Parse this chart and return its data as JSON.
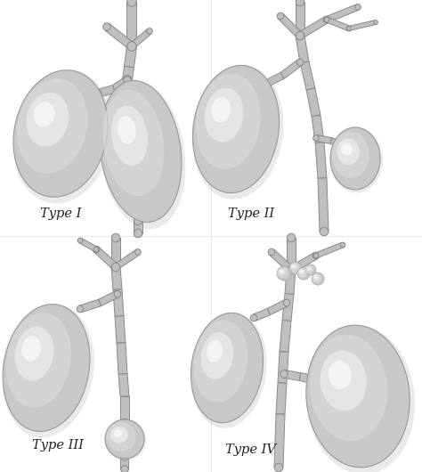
{
  "background_color": "#ffffff",
  "figure_width": 4.74,
  "figure_height": 5.3,
  "dpi": 100,
  "labels": [
    "Type I",
    "Type II",
    "Type III",
    "Type IV"
  ],
  "label_fontsize": 10.5,
  "duct_base": "#b8b8b8",
  "duct_edge": "#888888",
  "blob_base": "#cccccc",
  "blob_light": "#e8e8e8",
  "blob_highlight": "#f5f5f5",
  "text_color": "#222222"
}
